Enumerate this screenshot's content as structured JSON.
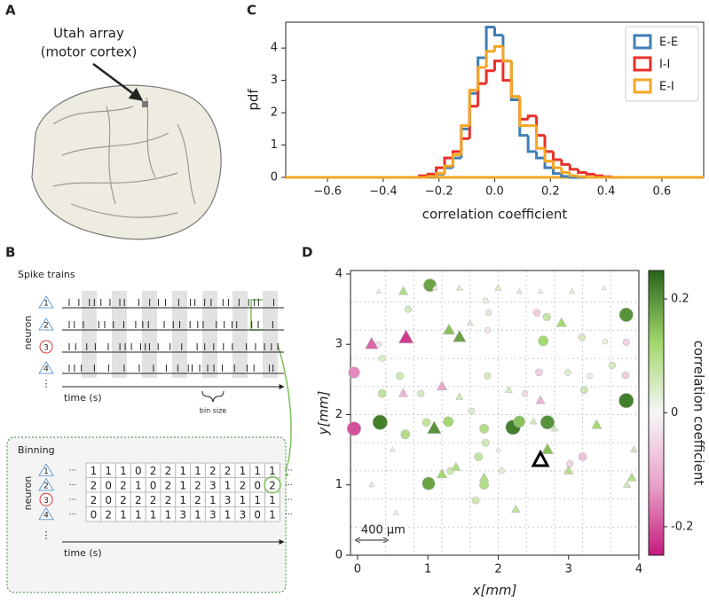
{
  "panel_labels": [
    "A",
    "B",
    "C",
    "D"
  ],
  "panel_a": {
    "annotation": [
      "Utah array",
      "(motor cortex)"
    ]
  },
  "panel_b": {
    "title": "Spike trains",
    "ylabel": "neuron",
    "xlabel": "time (s)",
    "bin_label": "bin size",
    "neurons": [
      1,
      2,
      3,
      4
    ],
    "more_rows": "⋮",
    "binning": {
      "title": "Binning",
      "ylabel": "neuron",
      "xlabel": "time (s)",
      "more_rows": "⋮",
      "more_cols": "···",
      "counts": [
        [
          1,
          1,
          1,
          0,
          2,
          2,
          1,
          1,
          2,
          2,
          1,
          1,
          1
        ],
        [
          2,
          0,
          2,
          1,
          0,
          2,
          1,
          2,
          3,
          1,
          2,
          0,
          2
        ],
        [
          2,
          0,
          2,
          2,
          2,
          2,
          1,
          2,
          1,
          3,
          1,
          1,
          1
        ],
        [
          0,
          2,
          1,
          1,
          1,
          1,
          3,
          1,
          3,
          1,
          3,
          0,
          1
        ]
      ]
    }
  },
  "chart_data": [
    {
      "type": "histogram",
      "xlabel": "correlation coefficient",
      "ylabel": "pdf",
      "bins": [
        -0.3,
        -0.27,
        -0.24,
        -0.21,
        -0.18,
        -0.15,
        -0.12,
        -0.09,
        -0.06,
        -0.03,
        0,
        0.03,
        0.06,
        0.09,
        0.12,
        0.15,
        0.18,
        0.21,
        0.24,
        0.27,
        0.3,
        0.33,
        0.36,
        0.39,
        0.42,
        0.45
      ],
      "series": [
        {
          "name": "E-E",
          "color": "#3f7fb6",
          "values": [
            0,
            0,
            0.02,
            0.1,
            0.3,
            0.6,
            1.5,
            2.6,
            3.7,
            4.65,
            4.4,
            3.6,
            2.4,
            1.3,
            0.8,
            0.6,
            0.3,
            0.12,
            0.03,
            0,
            0,
            0,
            0,
            0,
            0
          ]
        },
        {
          "name": "I-I",
          "color": "#e8302a",
          "values": [
            0,
            0.05,
            0.1,
            0.3,
            0.6,
            0.8,
            1.2,
            2.2,
            2.9,
            3.3,
            3.6,
            3.0,
            2.5,
            1.8,
            1.9,
            1.3,
            0.8,
            0.55,
            0.4,
            0.25,
            0.15,
            0.1,
            0.05,
            0.02,
            0
          ]
        },
        {
          "name": "E-I",
          "color": "#f5a623",
          "values": [
            0,
            0,
            0.03,
            0.12,
            0.35,
            0.7,
            1.6,
            2.7,
            3.4,
            3.9,
            4.05,
            3.6,
            2.5,
            1.6,
            1.6,
            0.9,
            0.5,
            0.3,
            0.15,
            0.05,
            0.02,
            0,
            0,
            0,
            0
          ]
        }
      ],
      "xlim": [
        -0.75,
        0.75
      ],
      "ylim": [
        0,
        4.8
      ],
      "xticks": [
        {
          "value": -0.6,
          "label": "−0.6"
        },
        {
          "value": -0.4,
          "label": "−0.4"
        },
        {
          "value": -0.2,
          "label": "−0.2"
        },
        {
          "value": 0,
          "label": "0.0"
        },
        {
          "value": 0.2,
          "label": "0.2"
        },
        {
          "value": 0.4,
          "label": "0.4"
        },
        {
          "value": 0.6,
          "label": "0.6"
        }
      ],
      "yticks": [
        0,
        1,
        2,
        3,
        4
      ],
      "legend": "upper right"
    },
    {
      "type": "scatter",
      "xlabel": "x[mm]",
      "ylabel": "y[mm]",
      "xlim": [
        -0.1,
        4
      ],
      "ylim": [
        0,
        4.05
      ],
      "xticks": [
        0,
        1,
        2,
        3,
        4
      ],
      "yticks": [
        0,
        1,
        2,
        3,
        4
      ],
      "series": [
        {
          "marker": "circle",
          "x": [
            1.03,
            3.82,
            2.64,
            2.69,
            3.19,
            3.52,
            3.81,
            3.82,
            -0.05,
            0.3,
            0.72,
            0.6,
            0.35,
            0.32,
            -0.05,
            0.68,
            0.98,
            1.29,
            1.62,
            1.8,
            1.82,
            1.72,
            1.01,
            1.85,
            1.85,
            1.86,
            1.82,
            2.21,
            2.3,
            2.7,
            2.38,
            2.58,
            2.55,
            2.99,
            3.22,
            3.3,
            3.62,
            3.82,
            3.2,
            3.02,
            2.05,
            1.32,
            1.8,
            1.68,
            0.9,
            0.35
          ],
          "y": [
            3.84,
            3.42,
            3.05,
            3.39,
            3.1,
            3.04,
            2.56,
            3.03,
            2.6,
            3.0,
            3.5,
            2.55,
            2.3,
            1.89,
            1.8,
            1.72,
            1.89,
            1.9,
            2.05,
            1.8,
            1.6,
            1.4,
            1.02,
            2.55,
            3.2,
            3.45,
            3.62,
            1.82,
            1.9,
            1.89,
            2.3,
            2.6,
            3.45,
            2.6,
            2.35,
            2.55,
            2.7,
            2.2,
            1.4,
            1.3,
            1.2,
            1.2,
            1.0,
            0.78,
            2.3,
            2.8
          ],
          "values": [
            0.18,
            0.2,
            0.12,
            0.07,
            0.05,
            0.02,
            -0.06,
            -0.05,
            -0.15,
            -0.03,
            0.05,
            0.06,
            0.08,
            0.22,
            -0.2,
            0.1,
            0.08,
            0.12,
            0.04,
            0.1,
            0.06,
            0.08,
            0.18,
            0.05,
            -0.03,
            0.03,
            0.02,
            0.22,
            0.15,
            0.2,
            -0.04,
            -0.06,
            -0.06,
            0.04,
            0.06,
            -0.02,
            0.05,
            0.22,
            -0.08,
            -0.05,
            0.03,
            0.06,
            0.1,
            0.06,
            0.05,
            0.04
          ]
        },
        {
          "marker": "triangle",
          "x": [
            0.65,
            1.3,
            1.45,
            0.69,
            0.2,
            1.1,
            0.3,
            1.45,
            2.3,
            2.6,
            3.05,
            3.5,
            2.0,
            2.9,
            1.6,
            0.65,
            1.2,
            1.45,
            2.15,
            2.6,
            2.5,
            1.09,
            2.7,
            3.0,
            2.8,
            3.93,
            3.9,
            3.83,
            1.2,
            1.8,
            2.25,
            1.4,
            2.0,
            0.5,
            0.2,
            0.55,
            3.4
          ],
          "y": [
            3.75,
            3.2,
            3.1,
            3.09,
            3.0,
            3.8,
            3.75,
            3.8,
            3.75,
            3.75,
            3.75,
            3.8,
            3.8,
            3.3,
            3.3,
            2.3,
            2.4,
            2.25,
            2.35,
            2.2,
            1.9,
            1.8,
            1.5,
            1.2,
            1.8,
            1.5,
            1.1,
            1.0,
            1.15,
            1.1,
            0.65,
            1.25,
            1.5,
            1.5,
            1.0,
            0.6,
            1.85
          ],
          "values": [
            0.1,
            0.15,
            0.18,
            -0.22,
            -0.18,
            -0.02,
            0.01,
            0.03,
            -0.02,
            0.0,
            0.02,
            0.0,
            0.04,
            0.12,
            0.03,
            -0.1,
            -0.12,
            0.06,
            0.05,
            -0.1,
            0.05,
            0.2,
            0.15,
            0.1,
            0.05,
            0.05,
            0.1,
            0.06,
            0.12,
            0.1,
            0.08,
            0.1,
            0.0,
            -0.01,
            -0.02,
            -0.01,
            0.12
          ]
        }
      ],
      "reference": {
        "x": 2.6,
        "y": 1.35
      },
      "scale_bar": {
        "length": 0.4,
        "label": "400 µm"
      },
      "colorbar": {
        "label": "correlation coefficient",
        "clim": [
          -0.25,
          0.25
        ],
        "ticks": [
          -0.2,
          0,
          0.2
        ],
        "colors": [
          "#c51b7d",
          "#e9a3c9",
          "#f7f7f7",
          "#a1d76a",
          "#276419"
        ]
      }
    }
  ]
}
